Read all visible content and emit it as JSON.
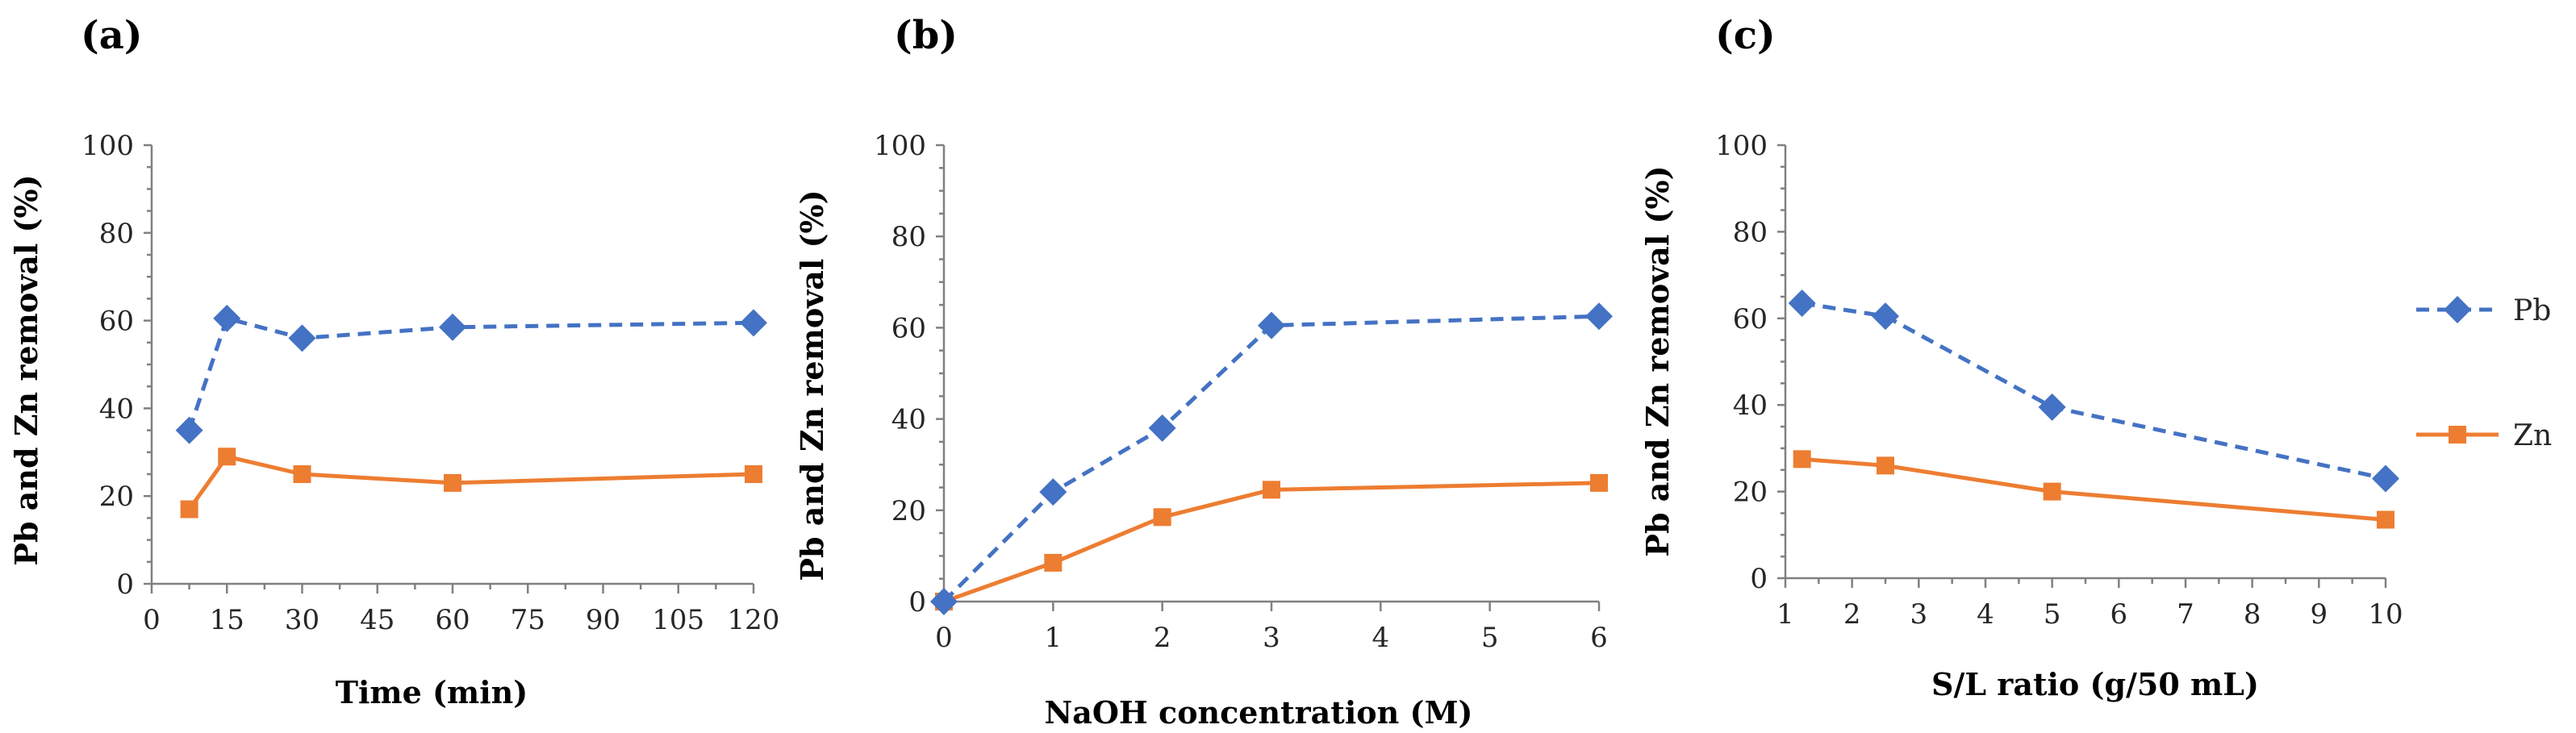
{
  "series_styles": {
    "Pb": {
      "color": "#4472C4",
      "marker": "diamond",
      "dash": true
    },
    "Zn": {
      "color": "#ED7D31",
      "marker": "square",
      "dash": false
    }
  },
  "legend": [
    {
      "name": "Pb",
      "series": "Pb"
    },
    {
      "name": "Zn",
      "series": "Zn"
    }
  ],
  "chart_data": [
    {
      "panel": "(a)",
      "type": "line",
      "xlabel": "Time (min)",
      "ylabel": "Pb and Zn removal (%)",
      "xlim": [
        0,
        120
      ],
      "ylim": [
        0,
        100
      ],
      "xticks": [
        0,
        15,
        30,
        45,
        60,
        75,
        90,
        105,
        120
      ],
      "yticks": [
        0,
        20,
        40,
        60,
        80,
        100
      ],
      "series": [
        {
          "name": "Pb",
          "x": [
            7.5,
            15,
            30,
            60,
            120
          ],
          "y": [
            35,
            60.5,
            56,
            58.5,
            59.5
          ]
        },
        {
          "name": "Zn",
          "x": [
            7.5,
            15,
            30,
            60,
            120
          ],
          "y": [
            17,
            29,
            25,
            23,
            25
          ]
        }
      ]
    },
    {
      "panel": "(b)",
      "type": "line",
      "xlabel": "NaOH concentration (M)",
      "ylabel": "Pb and Zn removal (%)",
      "xlim": [
        0,
        6
      ],
      "ylim": [
        0,
        100
      ],
      "xticks": [
        0,
        1,
        2,
        3,
        4,
        5,
        6
      ],
      "yticks": [
        0,
        20,
        40,
        60,
        80,
        100
      ],
      "series": [
        {
          "name": "Pb",
          "x": [
            0,
            1,
            2,
            3,
            6
          ],
          "y": [
            0,
            24,
            38,
            60.5,
            62.5
          ]
        },
        {
          "name": "Zn",
          "x": [
            0,
            1,
            2,
            3,
            6
          ],
          "y": [
            0,
            8.5,
            18.5,
            24.5,
            26
          ]
        }
      ]
    },
    {
      "panel": "(c)",
      "type": "line",
      "xlabel": "S/L ratio (g/50 mL)",
      "ylabel": "Pb and Zn removal (%)",
      "xlim": [
        1,
        10
      ],
      "ylim": [
        0,
        100
      ],
      "xticks": [
        1,
        2,
        3,
        4,
        5,
        6,
        7,
        8,
        9,
        10
      ],
      "yticks": [
        0,
        20,
        40,
        60,
        80,
        100
      ],
      "series": [
        {
          "name": "Pb",
          "x": [
            1.25,
            2.5,
            5,
            10
          ],
          "y": [
            63.5,
            60.5,
            39.5,
            23
          ]
        },
        {
          "name": "Zn",
          "x": [
            1.25,
            2.5,
            5,
            10
          ],
          "y": [
            27.5,
            26,
            20,
            13.5
          ]
        }
      ]
    }
  ]
}
